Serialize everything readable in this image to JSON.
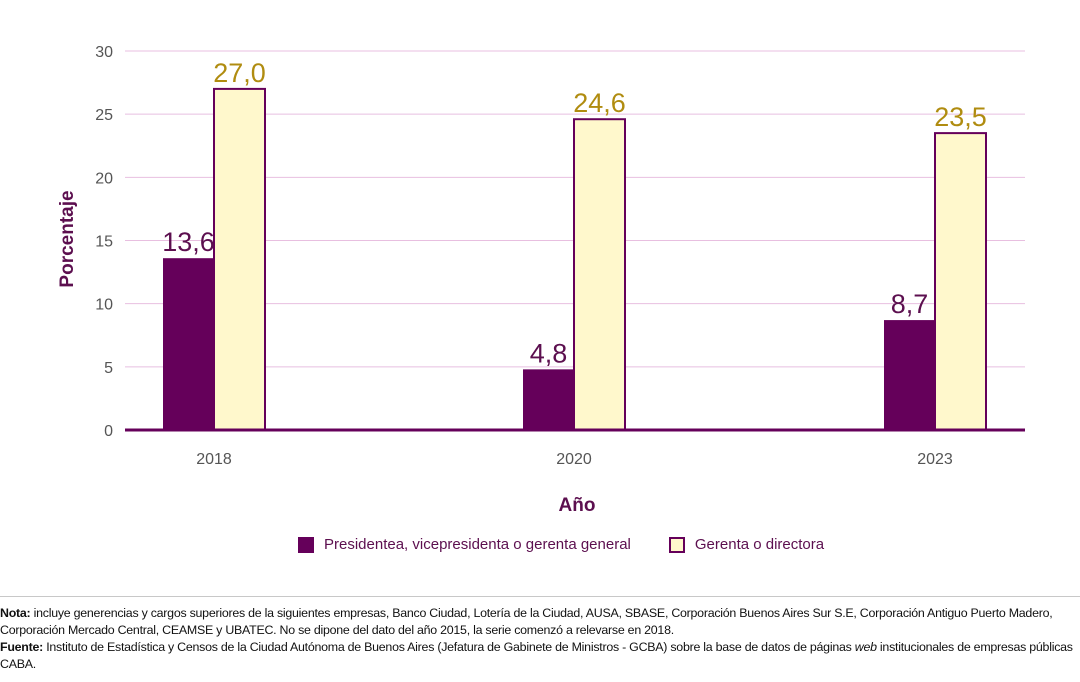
{
  "chart_data": {
    "type": "bar",
    "categories": [
      "2018",
      "2020",
      "2023"
    ],
    "series": [
      {
        "name": "Presidentea, vicepresidenta o gerenta general",
        "values": [
          13.6,
          4.8,
          8.7
        ],
        "labels": [
          "13,6",
          "4,8",
          "8,7"
        ],
        "color": "#65005a",
        "label_color": "#5c0f4f"
      },
      {
        "name": "Gerenta o directora",
        "values": [
          27.0,
          24.6,
          23.5
        ],
        "labels": [
          "27,0",
          "24,6",
          "23,5"
        ],
        "color": "#fff8cc",
        "border": "#65005a",
        "label_color": "#b08c10"
      }
    ],
    "xlabel": "Año",
    "ylabel": "Porcentaje",
    "ylim": [
      0,
      30
    ],
    "yticks": [
      "0",
      "5",
      "10",
      "15",
      "20",
      "25",
      "30"
    ],
    "grid": true,
    "legend_position": "bottom"
  },
  "notes": {
    "nota_label": "Nota:",
    "nota_text": " incluye generencias y cargos superiores de la siguientes empresas, Banco Ciudad, Lotería de la Ciudad, AUSA, SBASE, Corporación Buenos Aires Sur S.E, Corporación Antiguo Puerto Madero, Corporación Mercado Central, CEAMSE y UBATEC. No se dipone del dato del año 2015, la serie comenzó a relevarse en 2018.",
    "fuente_label": "Fuente:",
    "fuente_text_1": " Instituto de Estadística y Censos de la Ciudad Autónoma de Buenos Aires (Jefatura de Gabinete de Ministros - GCBA) sobre la base de datos de páginas ",
    "fuente_italic": "web",
    "fuente_text_2": " institucionales de empresas públicas CABA."
  }
}
